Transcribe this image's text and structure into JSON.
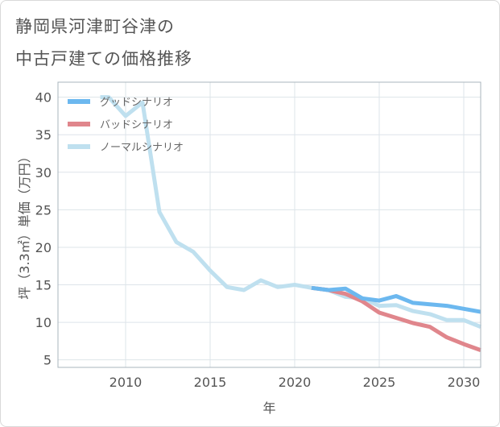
{
  "title": {
    "line1": "静岡県河津町谷津の",
    "line2": "中古戸建ての価格推移"
  },
  "colors": {
    "good": "#6cb8ef",
    "bad": "#e0868c",
    "normal": "#bfe0ef",
    "grid": "#dde4ea",
    "frame": "#aab4bc"
  },
  "chart_data": {
    "type": "line",
    "xlabel": "年",
    "ylabel": "坪（3.3㎡）単価（万円）",
    "xlim": [
      2006,
      2031
    ],
    "ylim": [
      4,
      42
    ],
    "x_ticks": [
      2010,
      2015,
      2020,
      2025,
      2030
    ],
    "y_ticks": [
      5,
      10,
      15,
      20,
      25,
      30,
      35,
      40
    ],
    "legend_position": "top-left",
    "series": [
      {
        "name": "グッドシナリオ",
        "color_key": "good",
        "points": [
          [
            2021,
            14.6
          ],
          [
            2022,
            14.3
          ],
          [
            2023,
            14.5
          ],
          [
            2024,
            13.2
          ],
          [
            2025,
            12.9
          ],
          [
            2026,
            13.5
          ],
          [
            2027,
            12.6
          ],
          [
            2028,
            12.4
          ],
          [
            2029,
            12.2
          ],
          [
            2030,
            11.8
          ],
          [
            2031,
            11.4
          ]
        ]
      },
      {
        "name": "バッドシナリオ",
        "color_key": "bad",
        "points": [
          [
            2021,
            14.6
          ],
          [
            2022,
            14.3
          ],
          [
            2023,
            13.8
          ],
          [
            2024,
            12.8
          ],
          [
            2025,
            11.3
          ],
          [
            2026,
            10.6
          ],
          [
            2027,
            9.9
          ],
          [
            2028,
            9.4
          ],
          [
            2029,
            8.0
          ],
          [
            2030,
            7.1
          ],
          [
            2031,
            6.3
          ]
        ]
      },
      {
        "name": "ノーマルシナリオ",
        "color_key": "normal",
        "points": [
          [
            2008.5,
            40.0
          ],
          [
            2009,
            40.0
          ],
          [
            2010,
            37.5
          ],
          [
            2011,
            39.3
          ],
          [
            2012,
            24.7
          ],
          [
            2013,
            20.7
          ],
          [
            2014,
            19.4
          ],
          [
            2015,
            16.9
          ],
          [
            2016,
            14.7
          ],
          [
            2017,
            14.3
          ],
          [
            2018,
            15.6
          ],
          [
            2019,
            14.7
          ],
          [
            2020,
            15.0
          ],
          [
            2021,
            14.6
          ],
          [
            2022,
            14.3
          ],
          [
            2023,
            13.4
          ],
          [
            2024,
            13.2
          ],
          [
            2025,
            12.2
          ],
          [
            2026,
            12.3
          ],
          [
            2027,
            11.5
          ],
          [
            2028,
            11.1
          ],
          [
            2029,
            10.3
          ],
          [
            2030,
            10.3
          ],
          [
            2031,
            9.4
          ]
        ]
      }
    ]
  }
}
